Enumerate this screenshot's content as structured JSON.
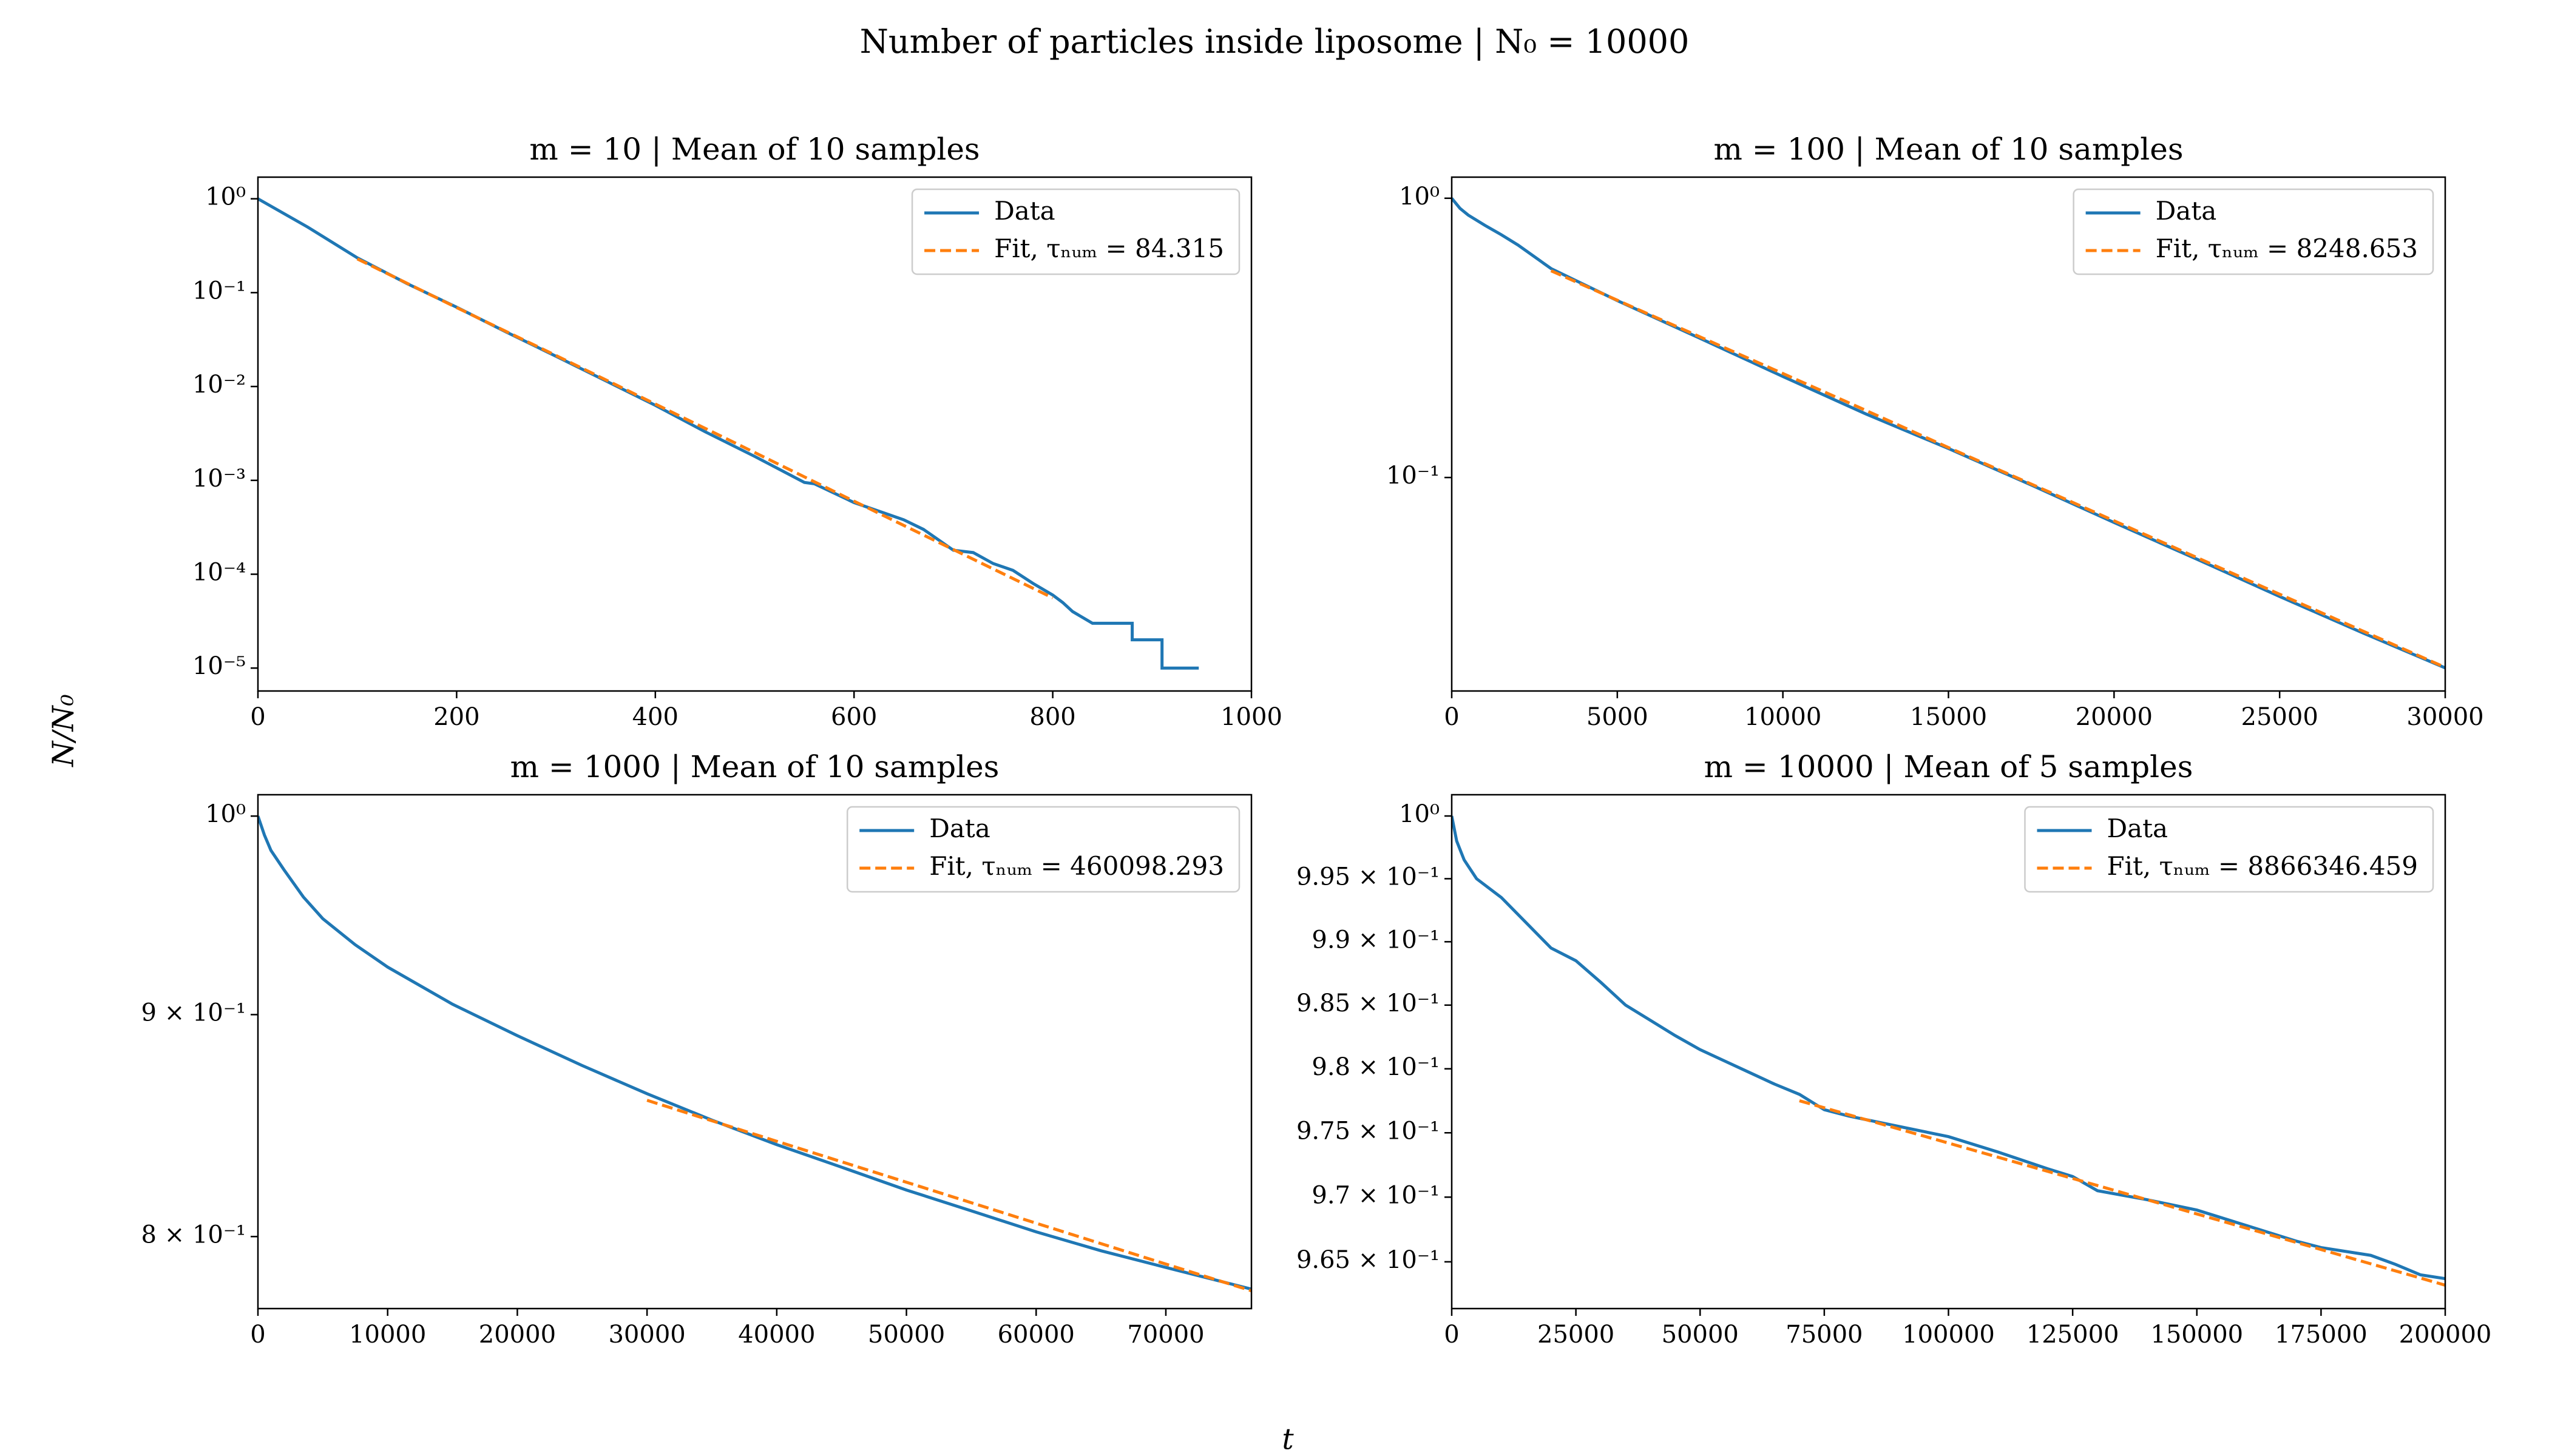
{
  "title": "Number of particles inside liposome | N₀ = 10000",
  "xlabel": "t",
  "ylabel": "N/N₀",
  "chart_data": [
    {
      "type": "line",
      "title": "m = 10 | Mean of 10 samples",
      "log_y": true,
      "legend": "upper right",
      "xlim": [
        0,
        1000
      ],
      "ylim": [
        5.7e-06,
        1.7
      ],
      "xticks": [
        0,
        200,
        400,
        600,
        800,
        1000
      ],
      "yticks": [
        {
          "value": 1,
          "label": "10⁰"
        },
        {
          "value": 0.1,
          "label": "10⁻¹"
        },
        {
          "value": 0.01,
          "label": "10⁻²"
        },
        {
          "value": 0.001,
          "label": "10⁻³"
        },
        {
          "value": 0.0001,
          "label": "10⁻⁴"
        },
        {
          "value": 1e-05,
          "label": "10⁻⁵"
        }
      ],
      "series": [
        {
          "name": "Data",
          "color": "#1f77b4",
          "linestyle": "solid",
          "x": [
            0,
            50,
            100,
            150,
            200,
            250,
            300,
            350,
            400,
            450,
            500,
            550,
            560,
            600,
            650,
            670,
            700,
            720,
            740,
            760,
            780,
            800,
            810,
            820,
            840,
            880,
            880,
            910,
            910,
            947
          ],
          "values": [
            1,
            0.5,
            0.235,
            0.125,
            0.07,
            0.038,
            0.021,
            0.0115,
            0.0063,
            0.0033,
            0.0018,
            0.00095,
            0.00092,
            0.00058,
            0.00038,
            0.0003,
            0.00018,
            0.00017,
            0.00013,
            0.00011,
            8e-05,
            6e-05,
            5e-05,
            4e-05,
            3e-05,
            3e-05,
            2e-05,
            2e-05,
            1e-05,
            1e-05
          ]
        },
        {
          "name": "Fit, τₙᵤₘ = 84.315",
          "color": "#ff7f0e",
          "linestyle": "dashed",
          "x": [
            100,
            200,
            300,
            400,
            500,
            600,
            700,
            800
          ],
          "values": [
            0.229,
            0.0693,
            0.0214,
            0.0065,
            0.00198,
            0.0006,
            0.000183,
            5.6e-05
          ]
        }
      ]
    },
    {
      "type": "line",
      "title": "m = 100 | Mean of 10 samples",
      "log_y": true,
      "legend": "upper right",
      "xlim": [
        0,
        30000
      ],
      "ylim": [
        0.0172,
        1.19
      ],
      "xticks": [
        0,
        5000,
        10000,
        15000,
        20000,
        25000,
        30000
      ],
      "yticks": [
        {
          "value": 1,
          "label": "10⁰"
        },
        {
          "value": 0.1,
          "label": "10⁻¹"
        }
      ],
      "series": [
        {
          "name": "Data",
          "color": "#1f77b4",
          "linestyle": "solid",
          "x": [
            0,
            250,
            500,
            1000,
            1500,
            2000,
            3000,
            5000,
            7500,
            10000,
            12500,
            15000,
            17500,
            20000,
            22500,
            25000,
            27500,
            30000
          ],
          "values": [
            1,
            0.92,
            0.87,
            0.8,
            0.74,
            0.68,
            0.56,
            0.43,
            0.315,
            0.23,
            0.169,
            0.127,
            0.094,
            0.069,
            0.051,
            0.0375,
            0.0278,
            0.0208
          ]
        },
        {
          "name": "Fit, τₙᵤₘ = 8248.653",
          "color": "#ff7f0e",
          "linestyle": "dashed",
          "x": [
            3000,
            6000,
            9000,
            12000,
            15000,
            18000,
            21000,
            24000,
            27000,
            30000
          ],
          "values": [
            0.55,
            0.382,
            0.266,
            0.185,
            0.128,
            0.0892,
            0.062,
            0.0431,
            0.03,
            0.0209
          ]
        }
      ]
    },
    {
      "type": "line",
      "title": "m = 1000 | Mean of 10 samples",
      "log_y": true,
      "legend": "upper right",
      "xlim": [
        0,
        76600
      ],
      "ylim": [
        0.77,
        1.0114
      ],
      "xticks": [
        0,
        10000,
        20000,
        30000,
        40000,
        50000,
        60000,
        70000
      ],
      "yticks": [
        {
          "value": 1,
          "label": "10⁰"
        },
        {
          "value": 0.9,
          "label": "9 × 10⁻¹"
        },
        {
          "value": 0.8,
          "label": "8 × 10⁻¹"
        }
      ],
      "series": [
        {
          "name": "Data",
          "color": "#1f77b4",
          "linestyle": "solid",
          "x": [
            0,
            500,
            1000,
            2000,
            3500,
            5000,
            7500,
            10000,
            15000,
            20000,
            25000,
            30000,
            35000,
            40000,
            45000,
            50000,
            55000,
            60000,
            65000,
            70000,
            76600
          ],
          "values": [
            1,
            0.99,
            0.982,
            0.972,
            0.958,
            0.947,
            0.934,
            0.923,
            0.905,
            0.89,
            0.876,
            0.863,
            0.851,
            0.84,
            0.83,
            0.82,
            0.811,
            0.802,
            0.794,
            0.787,
            0.778
          ]
        },
        {
          "name": "Fit, τₙᵤₘ = 460098.293",
          "color": "#ff7f0e",
          "linestyle": "dashed",
          "x": [
            30000,
            40000,
            50000,
            60000,
            70000,
            76600
          ],
          "values": [
            0.86,
            0.8415,
            0.8234,
            0.8057,
            0.7884,
            0.7773
          ]
        }
      ]
    },
    {
      "type": "line",
      "title": "m = 10000 | Mean of 5 samples",
      "log_y": true,
      "legend": "upper right",
      "xlim": [
        0,
        200000
      ],
      "ylim": [
        0.9614,
        1.0017
      ],
      "xticks": [
        0,
        25000,
        50000,
        75000,
        100000,
        125000,
        150000,
        175000,
        200000
      ],
      "yticks": [
        {
          "value": 1,
          "label": "10⁰"
        },
        {
          "value": 0.995,
          "label": "9.95 × 10⁻¹"
        },
        {
          "value": 0.99,
          "label": "9.9 × 10⁻¹"
        },
        {
          "value": 0.985,
          "label": "9.85 × 10⁻¹"
        },
        {
          "value": 0.98,
          "label": "9.8 × 10⁻¹"
        },
        {
          "value": 0.975,
          "label": "9.75 × 10⁻¹"
        },
        {
          "value": 0.97,
          "label": "9.7 × 10⁻¹"
        },
        {
          "value": 0.965,
          "label": "9.65 × 10⁻¹"
        }
      ],
      "series": [
        {
          "name": "Data",
          "color": "#1f77b4",
          "linestyle": "solid",
          "x": [
            0,
            1000,
            2500,
            5000,
            10000,
            15000,
            20000,
            25000,
            30000,
            35000,
            40000,
            45000,
            50000,
            55000,
            60000,
            65000,
            70000,
            75000,
            80000,
            90000,
            100000,
            110000,
            120000,
            125000,
            130000,
            140000,
            150000,
            160000,
            170000,
            175000,
            185000,
            190000,
            195000,
            200000
          ],
          "values": [
            1,
            0.998,
            0.9965,
            0.995,
            0.9935,
            0.9915,
            0.9895,
            0.9885,
            0.9868,
            0.985,
            0.9838,
            0.9826,
            0.9815,
            0.9806,
            0.9797,
            0.9788,
            0.978,
            0.9768,
            0.9763,
            0.9755,
            0.9747,
            0.9735,
            0.9722,
            0.9716,
            0.9705,
            0.9698,
            0.969,
            0.9678,
            0.9666,
            0.9661,
            0.9655,
            0.9648,
            0.964,
            0.9637
          ]
        },
        {
          "name": "Fit, τₙᵤₘ = 8866346.459",
          "color": "#ff7f0e",
          "linestyle": "dashed",
          "x": [
            70000,
            100000,
            130000,
            160000,
            200000
          ],
          "values": [
            0.9775,
            0.9742,
            0.9709,
            0.9676,
            0.9632
          ]
        }
      ]
    }
  ]
}
